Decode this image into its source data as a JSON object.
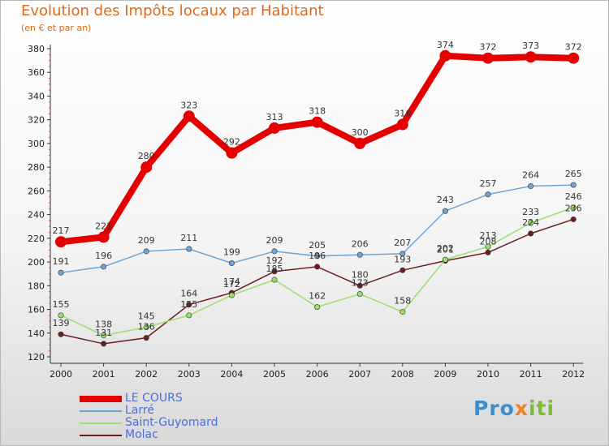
{
  "title": "Evolution des Impôts locaux par Habitant",
  "subtitle": "(en € et par an)",
  "logo": {
    "part1": "Pro",
    "part2": "x",
    "part3": "iti"
  },
  "chart_data": {
    "type": "line",
    "x": [
      "2000",
      "2001",
      "2002",
      "2003",
      "2004",
      "2005",
      "2006",
      "2007",
      "2008",
      "2009",
      "2010",
      "2011",
      "2012"
    ],
    "ylim": [
      120,
      380
    ],
    "yticks": [
      120,
      140,
      160,
      180,
      200,
      220,
      240,
      260,
      280,
      300,
      320,
      340,
      360,
      380
    ],
    "grid": false,
    "legend_position": "bottom-left",
    "series": [
      {
        "name": "LE COURS",
        "color": "#e40000",
        "values": [
          217,
          221,
          280,
          323,
          292,
          313,
          318,
          300,
          316,
          374,
          372,
          373,
          372
        ]
      },
      {
        "name": "Larré",
        "color": "#6fa4d4",
        "values": [
          191,
          196,
          209,
          211,
          199,
          209,
          205,
          206,
          207,
          243,
          257,
          264,
          265
        ]
      },
      {
        "name": "Saint-Guyomard",
        "color": "#9be06b",
        "values": [
          155,
          138,
          145,
          155,
          172,
          185,
          162,
          173,
          158,
          202,
          213,
          233,
          246
        ]
      },
      {
        "name": "Molac",
        "color": "#6b1f1f",
        "values": [
          139,
          131,
          136,
          164,
          174,
          192,
          196,
          180,
          193,
          201,
          208,
          224,
          236
        ]
      }
    ]
  },
  "colors": {
    "title": "#e06a1b",
    "axis": "#333333",
    "tick_red": "#ee4444"
  }
}
